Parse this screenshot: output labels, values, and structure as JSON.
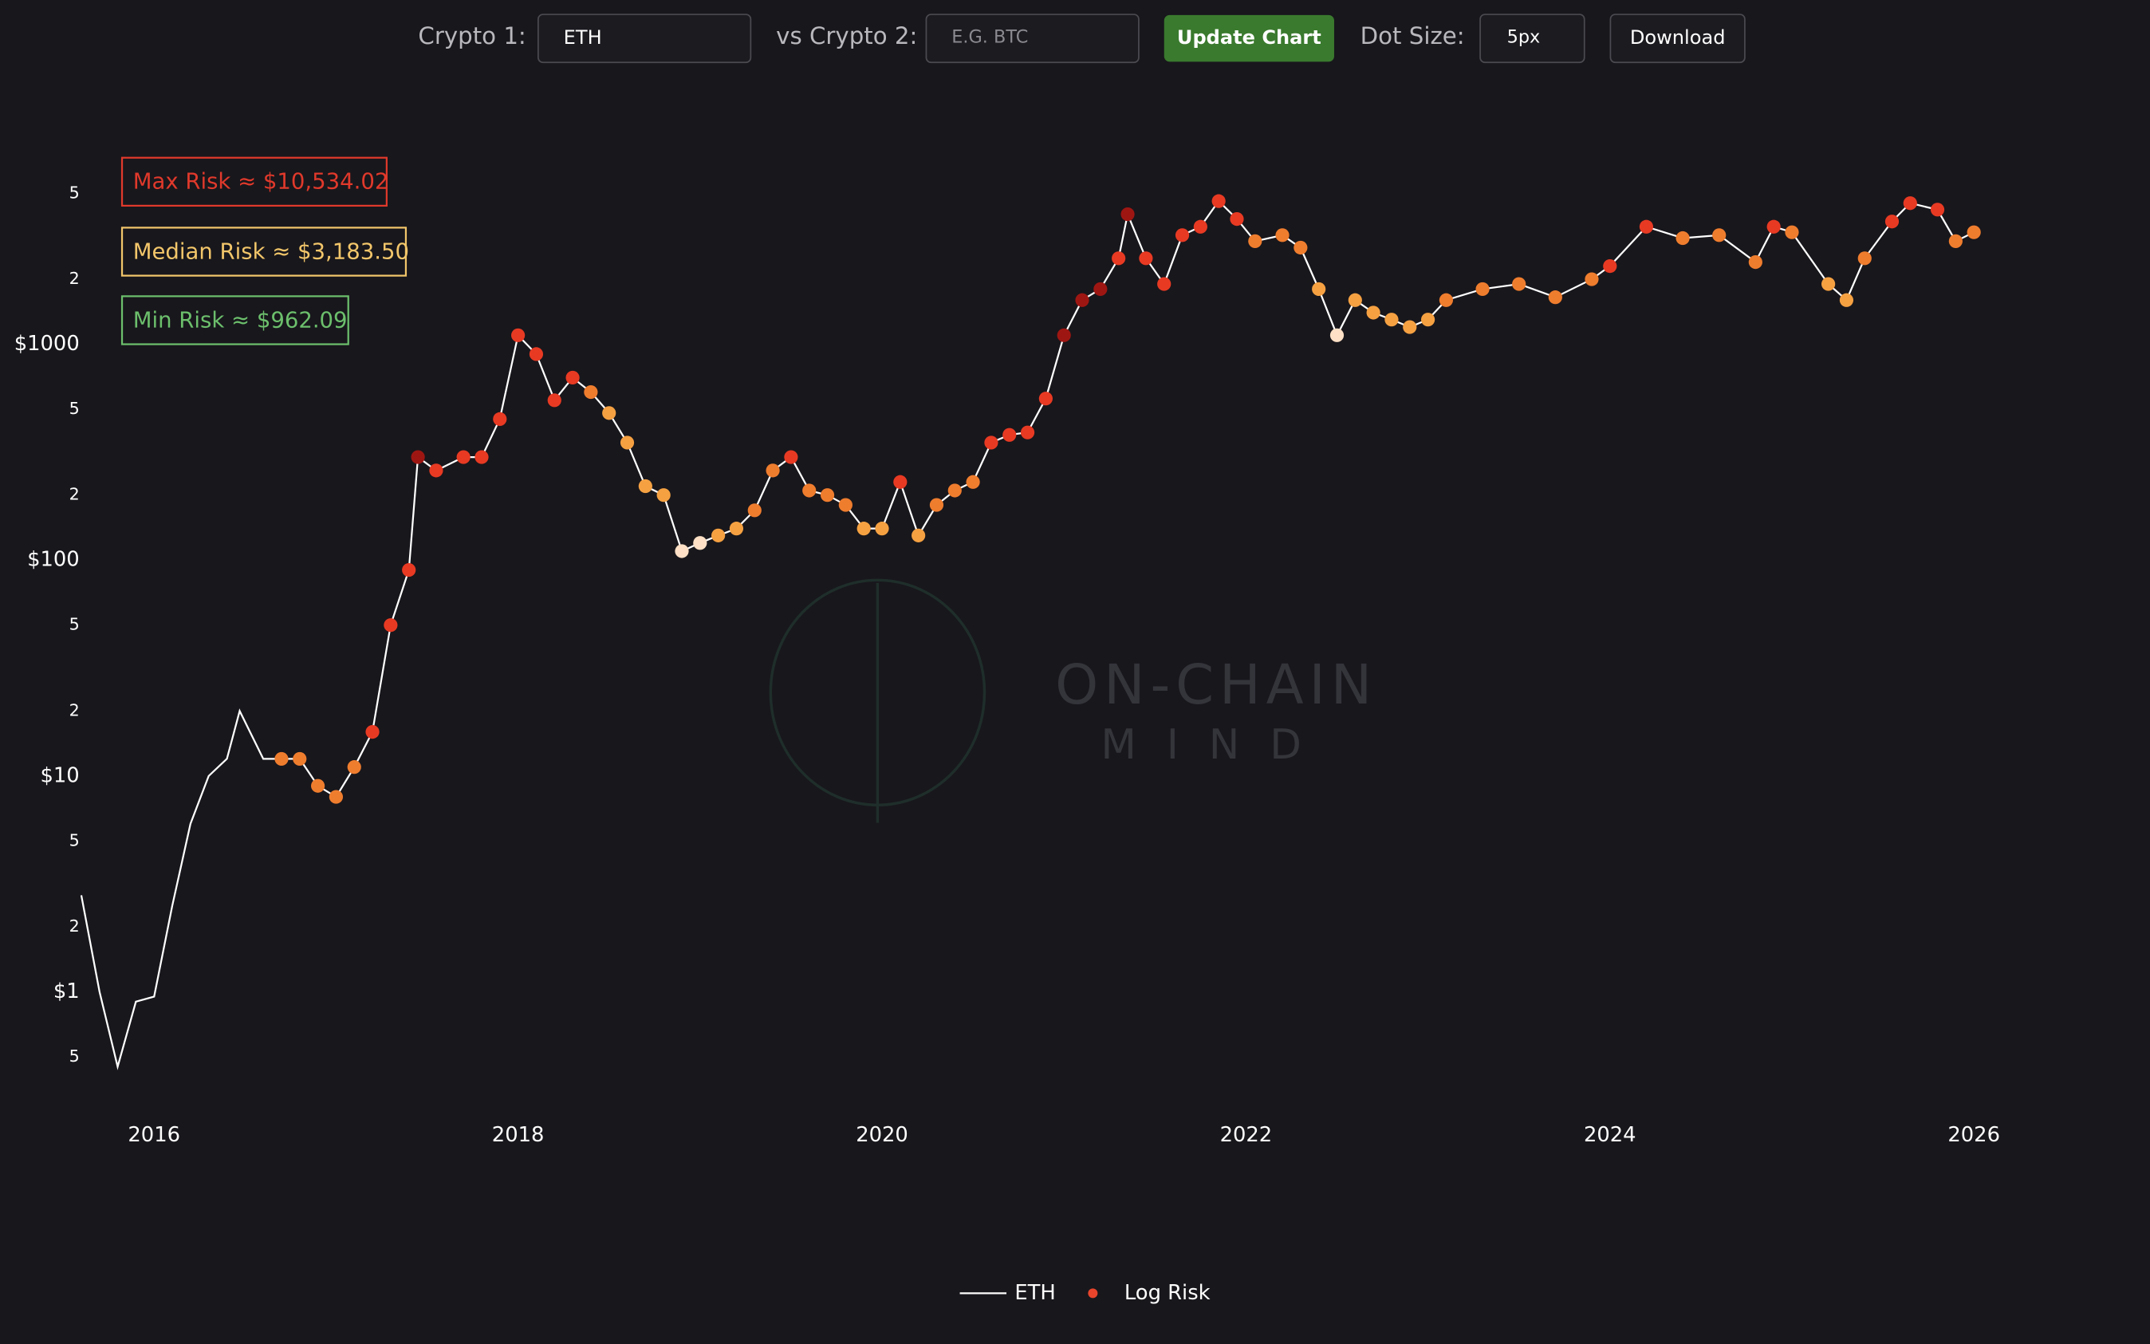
{
  "toolbar": {
    "crypto1_label": "Crypto 1:",
    "crypto1_value": "ETH",
    "crypto2_label": "vs Crypto 2:",
    "crypto2_placeholder": "E.G. BTC",
    "update_button": "Update Chart",
    "dot_size_label": "Dot Size:",
    "dot_size_value": "5px",
    "download_button": "Download"
  },
  "chart_data": {
    "type": "line",
    "log_scale_y": true,
    "grid": false,
    "legend": "bottom",
    "x": [
      2015.6,
      2015.7,
      2015.8,
      2015.9,
      2016.0,
      2016.1,
      2016.2,
      2016.3,
      2016.4,
      2016.47,
      2016.6,
      2016.7,
      2016.8,
      2016.9,
      2017.0,
      2017.1,
      2017.2,
      2017.3,
      2017.4,
      2017.45,
      2017.55,
      2017.7,
      2017.8,
      2017.9,
      2018.0,
      2018.1,
      2018.2,
      2018.3,
      2018.4,
      2018.5,
      2018.6,
      2018.7,
      2018.8,
      2018.9,
      2019.0,
      2019.1,
      2019.2,
      2019.3,
      2019.4,
      2019.5,
      2019.6,
      2019.7,
      2019.8,
      2019.9,
      2020.0,
      2020.1,
      2020.2,
      2020.3,
      2020.4,
      2020.5,
      2020.6,
      2020.7,
      2020.8,
      2020.9,
      2021.0,
      2021.1,
      2021.2,
      2021.3,
      2021.35,
      2021.45,
      2021.55,
      2021.65,
      2021.75,
      2021.85,
      2021.95,
      2022.05,
      2022.2,
      2022.3,
      2022.4,
      2022.5,
      2022.6,
      2022.7,
      2022.8,
      2022.9,
      2023.0,
      2023.1,
      2023.3,
      2023.5,
      2023.7,
      2023.9,
      2024.0,
      2024.2,
      2024.4,
      2024.6,
      2024.8,
      2024.9,
      2025.0,
      2025.2,
      2025.3,
      2025.4,
      2025.55,
      2025.65,
      2025.8,
      2025.9,
      2026.0
    ],
    "xlim": [
      2015.53,
      2026.38
    ],
    "xticks": [
      2016,
      2018,
      2020,
      2022,
      2024,
      2026
    ],
    "ylim": [
      0.35,
      9100
    ],
    "yticks": [
      {
        "value": 0.5,
        "label": "5"
      },
      {
        "value": 1,
        "label": "$1"
      },
      2,
      5,
      {
        "value": 10,
        "label": "$10"
      },
      {
        "value": 20,
        "label": "2"
      },
      {
        "value": 50,
        "label": "5"
      },
      {
        "value": 100,
        "label": "$100"
      },
      {
        "value": 200,
        "label": "2"
      },
      {
        "value": 500,
        "label": "5"
      },
      {
        "value": 1000,
        "label": "$1000"
      },
      {
        "value": 2000,
        "label": "2"
      },
      {
        "value": 5000,
        "label": "5"
      }
    ],
    "series": [
      {
        "name": "ETH",
        "color": "#ffffff",
        "values": [
          2.8,
          1.0,
          0.45,
          0.9,
          0.95,
          2.5,
          6,
          10,
          12,
          20,
          12,
          12,
          12,
          9,
          8,
          11,
          16,
          50,
          90,
          300,
          260,
          300,
          300,
          450,
          1100,
          900,
          550,
          700,
          600,
          480,
          350,
          220,
          200,
          110,
          120,
          130,
          140,
          170,
          260,
          300,
          210,
          200,
          180,
          140,
          140,
          230,
          130,
          180,
          210,
          230,
          350,
          380,
          390,
          560,
          1100,
          1600,
          1800,
          2500,
          4000,
          2500,
          1900,
          3200,
          3500,
          4600,
          3800,
          3000,
          3200,
          2800,
          1800,
          1100,
          1600,
          1400,
          1300,
          1200,
          1300,
          1600,
          1800,
          1900,
          1650,
          2000,
          2300,
          3500,
          3100,
          3200,
          2400,
          3500,
          3300,
          1900,
          1600,
          2500,
          3700,
          4500,
          4200,
          3000,
          3300
        ]
      },
      {
        "name": "Log Risk",
        "type": "scatter",
        "color": "#e8452c",
        "values": [
          null,
          null,
          null,
          null,
          null,
          null,
          null,
          null,
          null,
          null,
          null,
          12,
          12,
          9,
          8,
          11,
          16,
          50,
          90,
          300,
          260,
          300,
          300,
          450,
          1100,
          900,
          550,
          700,
          600,
          480,
          350,
          220,
          200,
          110,
          120,
          130,
          140,
          170,
          260,
          300,
          210,
          200,
          180,
          140,
          140,
          230,
          130,
          180,
          210,
          230,
          350,
          380,
          390,
          560,
          1100,
          1600,
          1800,
          2500,
          4000,
          2500,
          1900,
          3200,
          3500,
          4600,
          3800,
          3000,
          3200,
          2800,
          1800,
          1100,
          1600,
          1400,
          1300,
          1200,
          1300,
          1600,
          1800,
          1900,
          1650,
          2000,
          2300,
          3500,
          3100,
          3200,
          2400,
          3500,
          3300,
          1900,
          1600,
          2500,
          3700,
          4500,
          4200,
          3000,
          3300
        ],
        "point_colors": [
          null,
          null,
          null,
          null,
          null,
          null,
          null,
          null,
          null,
          null,
          null,
          "#ef7d2e",
          "#ef7d2e",
          "#ef7d2e",
          "#ef7d2e",
          "#ef7d2e",
          "#e83a23",
          "#e83a23",
          "#e83a23",
          "#9e1612",
          "#e83a23",
          "#e83a23",
          "#e83a23",
          "#e83a23",
          "#e83a23",
          "#e83a23",
          "#e83a23",
          "#e83a23",
          "#ef7d2e",
          "#f5a142",
          "#f5a142",
          "#f5a142",
          "#f5a142",
          "#fde0c5",
          "#fde0c5",
          "#f5a142",
          "#f5a142",
          "#ef7d2e",
          "#ef7d2e",
          "#e83a23",
          "#ef7d2e",
          "#ef7d2e",
          "#ef7d2e",
          "#f5a142",
          "#f5a142",
          "#e83a23",
          "#f5a142",
          "#ef7d2e",
          "#ef7d2e",
          "#ef7d2e",
          "#e83a23",
          "#e83a23",
          "#e83a23",
          "#e83a23",
          "#9e1612",
          "#9e1612",
          "#9e1612",
          "#e83a23",
          "#9e1612",
          "#e83a23",
          "#e83a23",
          "#e83a23",
          "#e83a23",
          "#e83a23",
          "#e83a23",
          "#ef7d2e",
          "#ef7d2e",
          "#ef7d2e",
          "#f5a142",
          "#fde0c5",
          "#f5a142",
          "#f5a142",
          "#f5a142",
          "#f5a142",
          "#f5a142",
          "#ef7d2e",
          "#ef7d2e",
          "#ef7d2e",
          "#ef7d2e",
          "#ef7d2e",
          "#e83a23",
          "#e83a23",
          "#ef7d2e",
          "#ef7d2e",
          "#ef7d2e",
          "#e83a23",
          "#ef7d2e",
          "#f5a142",
          "#f5a142",
          "#ef7d2e",
          "#e83a23",
          "#e83a23",
          "#e83a23",
          "#ef7d2e",
          "#ef7d2e"
        ]
      }
    ],
    "annotations": [
      {
        "text": "Max Risk ≈ $10,534.02",
        "color": "#e0392b"
      },
      {
        "text": "Median Risk ≈ $3,183.50",
        "color": "#f2c66a"
      },
      {
        "text": "Min Risk ≈ $962.09",
        "color": "#6cbf6c"
      }
    ],
    "watermark": [
      "ON-CHAIN",
      "MIND"
    ]
  }
}
